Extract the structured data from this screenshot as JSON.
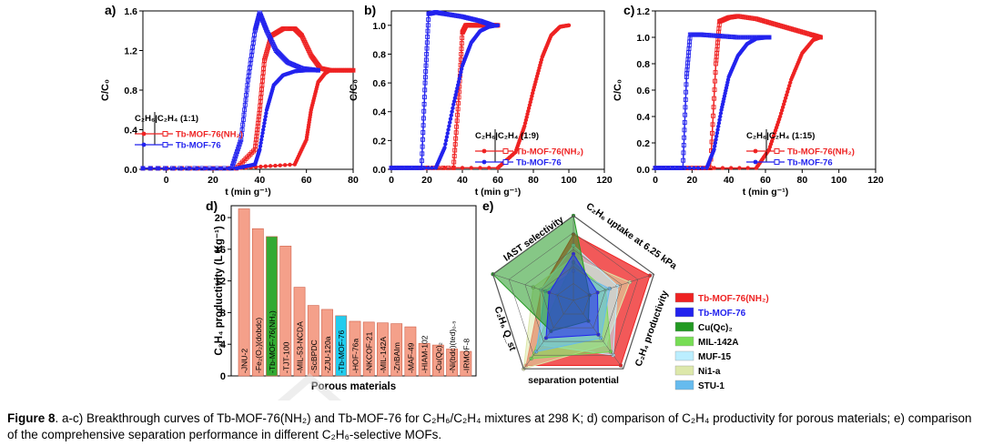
{
  "caption": {
    "label": "Figure 8",
    "text": ". a-c) Breakthrough curves of Tb-MOF-76(NH₂) and Tb-MOF-76 for C₂H₆/C₂H₄ mixtures at 298 K; d) comparison of C₂H₄ productivity for porous materials; e) comparison of the comprehensive separation performance in different C₂H₆-selective MOFs."
  },
  "colors": {
    "red": "#ee2222",
    "blue": "#2222ee",
    "bar": "#f4a08a",
    "green": "#33aa33",
    "cyan": "#22ccee"
  },
  "chart_data": [
    {
      "panel": "a)",
      "type": "line",
      "xlabel": "t (min g⁻¹)",
      "ylabel": "C/C₀",
      "xlim": [
        -10,
        80
      ],
      "ylim": [
        0,
        1.6
      ],
      "xticks": [
        "0",
        "20",
        "40",
        "60",
        "80"
      ],
      "yticks": [
        "0.0",
        "0.4",
        "0.8",
        "1.2",
        "1.6"
      ],
      "legend_title": "C₂H₆|C₂H₄ (1:1)",
      "series": [
        {
          "name": "Tb-MOF-76(NH₂)",
          "color": "#ee2222",
          "component": "C2H6",
          "x": [
            -10,
            30,
            55,
            60,
            62,
            65,
            68,
            70,
            80
          ],
          "y": [
            0.01,
            0.01,
            0.05,
            0.3,
            0.6,
            0.88,
            0.97,
            1.0,
            1.0
          ]
        },
        {
          "name": "Tb-MOF-76(NH₂)",
          "color": "#ee2222",
          "component": "C2H4",
          "x": [
            -10,
            30,
            38,
            40,
            42,
            45,
            50,
            55,
            58,
            62,
            66,
            70,
            80
          ],
          "y": [
            0.01,
            0.01,
            0.2,
            0.6,
            1.1,
            1.35,
            1.42,
            1.42,
            1.35,
            1.15,
            1.02,
            1.0,
            1.0
          ]
        },
        {
          "name": "Tb-MOF-76",
          "color": "#2222ee",
          "component": "C2H6",
          "x": [
            -10,
            30,
            38,
            40,
            43,
            46,
            50,
            55,
            60,
            65
          ],
          "y": [
            0.01,
            0.01,
            0.05,
            0.2,
            0.6,
            0.85,
            0.95,
            0.99,
            1.0,
            1.0
          ]
        },
        {
          "name": "Tb-MOF-76",
          "color": "#2222ee",
          "component": "C2H4",
          "x": [
            -10,
            28,
            32,
            35,
            38,
            40,
            43,
            47,
            52,
            58,
            65
          ],
          "y": [
            0.01,
            0.01,
            0.3,
            0.9,
            1.4,
            1.58,
            1.4,
            1.2,
            1.08,
            1.02,
            1.0
          ]
        }
      ]
    },
    {
      "panel": "b)",
      "type": "line",
      "xlabel": "t (min g⁻¹)",
      "ylabel": "C/C₀",
      "xlim": [
        0,
        120
      ],
      "ylim": [
        0,
        1.1
      ],
      "xticks": [
        "0",
        "20",
        "40",
        "60",
        "80",
        "100",
        "120"
      ],
      "yticks": [
        "0.0",
        "0.2",
        "0.4",
        "0.6",
        "0.8",
        "1.0"
      ],
      "legend_title": "C₂H₆|C₂H₄ (1:9)",
      "series": [
        {
          "name": "Tb-MOF-76(NH₂)",
          "color": "#ee2222",
          "component": "C2H6",
          "x": [
            0,
            60,
            70,
            75,
            80,
            85,
            90,
            95,
            100
          ],
          "y": [
            0.01,
            0.01,
            0.12,
            0.3,
            0.55,
            0.78,
            0.93,
            0.99,
            1.0
          ]
        },
        {
          "name": "Tb-MOF-76(NH₂)",
          "color": "#ee2222",
          "component": "C2H4",
          "x": [
            0,
            35,
            38,
            40,
            42,
            45,
            50,
            55,
            60
          ],
          "y": [
            0.01,
            0.01,
            0.5,
            0.95,
            1.0,
            1.0,
            1.0,
            1.0,
            1.0
          ]
        },
        {
          "name": "Tb-MOF-76",
          "color": "#2222ee",
          "component": "C2H6",
          "x": [
            0,
            25,
            30,
            35,
            40,
            45,
            50,
            55,
            60
          ],
          "y": [
            0.01,
            0.01,
            0.15,
            0.45,
            0.72,
            0.88,
            0.96,
            0.99,
            1.0
          ]
        },
        {
          "name": "Tb-MOF-76",
          "color": "#2222ee",
          "component": "C2H4",
          "x": [
            0,
            17,
            19,
            21,
            25,
            30,
            40,
            50,
            57
          ],
          "y": [
            0.01,
            0.01,
            0.6,
            1.08,
            1.09,
            1.08,
            1.06,
            1.03,
            1.0
          ]
        }
      ]
    },
    {
      "panel": "c)",
      "type": "line",
      "xlabel": "t (min g⁻¹)",
      "ylabel": "C/C₀",
      "xlim": [
        0,
        120
      ],
      "ylim": [
        0,
        1.2
      ],
      "xticks": [
        "0",
        "20",
        "40",
        "60",
        "80",
        "100",
        "120"
      ],
      "yticks": [
        "0.0",
        "0.2",
        "0.4",
        "0.6",
        "0.8",
        "1.0",
        "1.2"
      ],
      "legend_title": "C₂H₆|C₂H₄ (1:15)",
      "series": [
        {
          "name": "Tb-MOF-76(NH₂)",
          "color": "#ee2222",
          "component": "C2H6",
          "x": [
            0,
            55,
            62,
            68,
            74,
            80,
            86,
            90
          ],
          "y": [
            0.01,
            0.01,
            0.15,
            0.4,
            0.68,
            0.88,
            0.98,
            1.0
          ]
        },
        {
          "name": "Tb-MOF-76(NH₂)",
          "color": "#ee2222",
          "component": "C2H4",
          "x": [
            0,
            30,
            33,
            35,
            40,
            45,
            55,
            65,
            75,
            85,
            90
          ],
          "y": [
            0.01,
            0.01,
            0.8,
            1.12,
            1.15,
            1.16,
            1.14,
            1.1,
            1.06,
            1.02,
            1.0
          ]
        },
        {
          "name": "Tb-MOF-76",
          "color": "#2222ee",
          "component": "C2H6",
          "x": [
            0,
            28,
            32,
            36,
            40,
            45,
            50,
            55,
            62
          ],
          "y": [
            0.01,
            0.01,
            0.15,
            0.45,
            0.7,
            0.86,
            0.95,
            0.99,
            1.0
          ]
        },
        {
          "name": "Tb-MOF-76",
          "color": "#2222ee",
          "component": "C2H4",
          "x": [
            0,
            15,
            17,
            19,
            25,
            35,
            45,
            55,
            62
          ],
          "y": [
            0.01,
            0.01,
            0.7,
            1.02,
            1.02,
            1.01,
            1.0,
            1.0,
            1.0
          ]
        }
      ]
    },
    {
      "panel": "d)",
      "type": "bar",
      "xlabel": "Porous materials",
      "ylabel": "C₂H₄ productivity (L Kg⁻¹)",
      "ylim": [
        0,
        21.5
      ],
      "yticks": [
        "0",
        "4",
        "8",
        "12",
        "16",
        "20"
      ],
      "categories": [
        "JNU-2",
        "Fe₂(O₂)(dobdc)",
        "Tb-MOF-76(NH₂)",
        "TJT-100",
        "MIL-53-NCDA",
        "ScBPDC",
        "ZJU-120a",
        "Tb-MOF-76",
        "HOF-76a",
        "NKCOF-21",
        "MIL-142A",
        "ZnBAIm",
        "MAF-49",
        "HIAM-102",
        "Cu(Qc)₂",
        "Ni(bdc)(ted)₀.₅",
        "IRMOF-8"
      ],
      "values": [
        21.1,
        18.6,
        17.6,
        16.4,
        11.2,
        8.9,
        8.4,
        7.6,
        6.9,
        6.8,
        6.7,
        6.6,
        6.2,
        4.1,
        3.9,
        3.4,
        3.1
      ],
      "bar_colors": [
        "#f4a08a",
        "#f4a08a",
        "#33aa33",
        "#f4a08a",
        "#f4a08a",
        "#f4a08a",
        "#f4a08a",
        "#22ccee",
        "#f4a08a",
        "#f4a08a",
        "#f4a08a",
        "#f4a08a",
        "#f4a08a",
        "#f4a08a",
        "#f4a08a",
        "#f4a08a",
        "#f4a08a"
      ]
    },
    {
      "panel": "e)",
      "type": "radar",
      "axes": [
        "C₂H₆ uptake at 6.25 kPa",
        "C₂H₄ productivity",
        "separation potential",
        "C₂H₆ Q_st",
        "IAST selectivity"
      ],
      "series": [
        {
          "name": "Tb-MOF-76(NH₂)",
          "color": "#ee2222",
          "values": [
            0.78,
            0.95,
            0.95,
            0.95,
            0.4
          ]
        },
        {
          "name": "Tb-MOF-76",
          "color": "#2222ee",
          "values": [
            0.55,
            0.3,
            0.5,
            0.55,
            0.3
          ]
        },
        {
          "name": "Cu(Qc)₂",
          "color": "#229922",
          "values": [
            1.0,
            0.2,
            0.3,
            0.45,
            1.0
          ]
        },
        {
          "name": "MIL-142A",
          "color": "#77dd55",
          "values": [
            0.45,
            0.4,
            0.75,
            0.85,
            0.2
          ]
        },
        {
          "name": "MUF-15",
          "color": "#bbeeff",
          "values": [
            0.65,
            0.55,
            0.8,
            0.65,
            0.4
          ]
        },
        {
          "name": "Ni1-a",
          "color": "#dde8aa",
          "values": [
            0.5,
            0.7,
            0.65,
            1.0,
            0.5
          ]
        },
        {
          "name": "STU-1",
          "color": "#66bbee",
          "values": [
            0.35,
            0.45,
            0.55,
            0.75,
            0.35
          ]
        }
      ]
    }
  ]
}
